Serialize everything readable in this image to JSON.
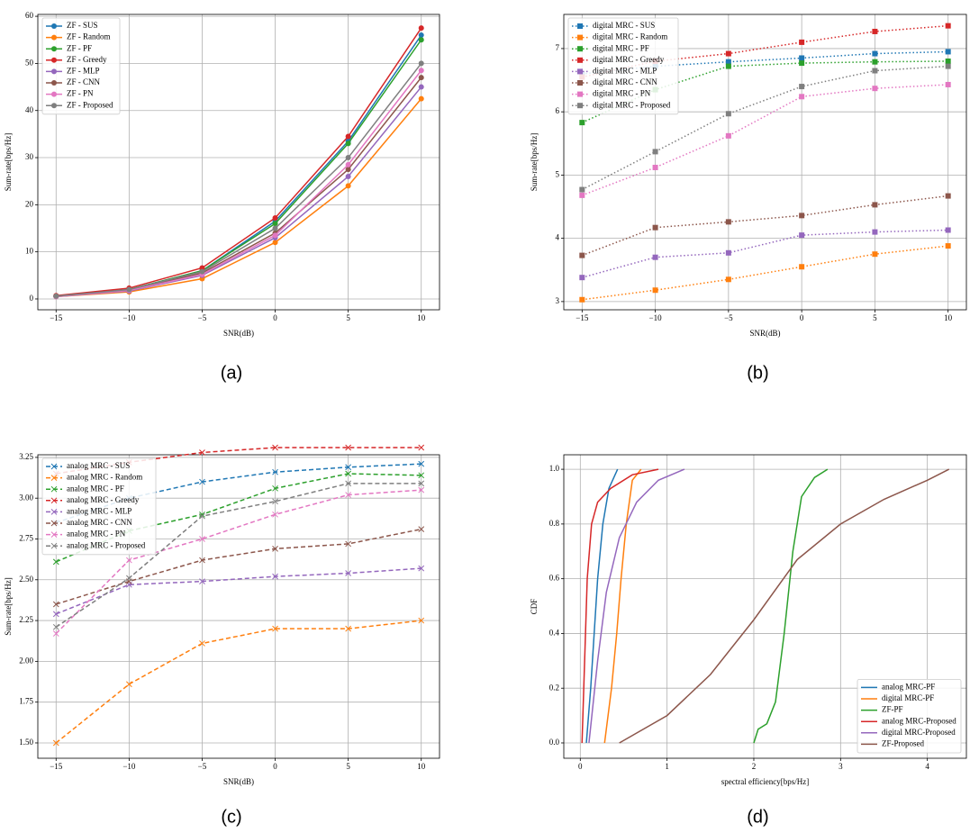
{
  "chart_data": [
    {
      "type": "line",
      "caption": "(a)",
      "xlabel": "SNR(dB)",
      "ylabel": "Sum-rate[bps/Hz]",
      "line_style": "solid",
      "marker": "circle",
      "legend": "upper left",
      "grid": true,
      "x": [
        -15,
        -10,
        -5,
        0,
        5,
        10
      ],
      "xlim": [
        -16.25,
        11.25
      ],
      "xticks": [
        {
          "value": -15,
          "label": "−15"
        },
        {
          "value": -10,
          "label": "−10"
        },
        {
          "value": -5,
          "label": "−5"
        },
        0,
        5,
        10
      ],
      "ylim": [
        -2.3,
        60.4
      ],
      "yticks": [
        0,
        10,
        20,
        30,
        40,
        50,
        60
      ],
      "series": [
        {
          "name": "ZF - SUS",
          "color": "#1f77b4",
          "values": [
            0.6,
            2.0,
            6.0,
            16.5,
            33.5,
            56
          ]
        },
        {
          "name": "ZF - Random",
          "color": "#ff7f0e",
          "values": [
            0.5,
            1.5,
            4.3,
            12,
            24,
            42.5
          ]
        },
        {
          "name": "ZF - PF",
          "color": "#2ca02c",
          "values": [
            0.6,
            2.0,
            6.0,
            16,
            33,
            55
          ]
        },
        {
          "name": "ZF - Greedy",
          "color": "#d62728",
          "values": [
            0.7,
            2.3,
            6.6,
            17.2,
            34.5,
            57.5
          ]
        },
        {
          "name": "ZF - MLP",
          "color": "#9467bd",
          "values": [
            0.5,
            1.7,
            5.0,
            13,
            26,
            45
          ]
        },
        {
          "name": "ZF - CNN",
          "color": "#8c564b",
          "values": [
            0.6,
            1.9,
            5.5,
            14,
            27.5,
            47
          ]
        },
        {
          "name": "ZF - PN",
          "color": "#e377c2",
          "values": [
            0.5,
            1.8,
            5.2,
            13.5,
            28.5,
            48.5
          ]
        },
        {
          "name": "ZF - Proposed",
          "color": "#7f7f7f",
          "values": [
            0.6,
            2.0,
            5.8,
            15,
            30,
            50
          ]
        }
      ]
    },
    {
      "type": "line",
      "caption": "(b)",
      "xlabel": "SNR(dB)",
      "ylabel": "Sum-rate[bps/Hz]",
      "line_style": "dotted",
      "marker": "square",
      "legend": "upper left",
      "grid": true,
      "x": [
        -15,
        -10,
        -5,
        0,
        5,
        10
      ],
      "xlim": [
        -16.25,
        11.25
      ],
      "xticks": [
        {
          "value": -15,
          "label": "−15"
        },
        {
          "value": -10,
          "label": "−10"
        },
        {
          "value": -5,
          "label": "−5"
        },
        0,
        5,
        10
      ],
      "ylim": [
        2.87,
        7.54
      ],
      "yticks": [
        3,
        4,
        5,
        6,
        7
      ],
      "series": [
        {
          "name": "digital MRC - SUS",
          "color": "#1f77b4",
          "values": [
            6.6,
            6.72,
            6.79,
            6.85,
            6.92,
            6.95
          ]
        },
        {
          "name": "digital MRC - Random",
          "color": "#ff7f0e",
          "values": [
            3.03,
            3.18,
            3.35,
            3.55,
            3.75,
            3.88
          ]
        },
        {
          "name": "digital MRC - PF",
          "color": "#2ca02c",
          "values": [
            5.83,
            6.35,
            6.72,
            6.77,
            6.79,
            6.8
          ]
        },
        {
          "name": "digital MRC - Greedy",
          "color": "#d62728",
          "values": [
            6.55,
            6.8,
            6.92,
            7.1,
            7.27,
            7.36
          ]
        },
        {
          "name": "digital MRC - MLP",
          "color": "#9467bd",
          "values": [
            3.38,
            3.7,
            3.77,
            4.05,
            4.1,
            4.13
          ]
        },
        {
          "name": "digital MRC - CNN",
          "color": "#8c564b",
          "values": [
            3.73,
            4.17,
            4.26,
            4.36,
            4.53,
            4.67
          ]
        },
        {
          "name": "digital MRC - PN",
          "color": "#e377c2",
          "values": [
            4.68,
            5.12,
            5.62,
            6.24,
            6.37,
            6.43
          ]
        },
        {
          "name": "digital MRC - Proposed",
          "color": "#7f7f7f",
          "values": [
            4.77,
            5.37,
            5.97,
            6.4,
            6.65,
            6.72
          ]
        }
      ]
    },
    {
      "type": "line",
      "caption": "(c)",
      "xlabel": "SNR(dB)",
      "ylabel": "Sum-rate[bps/Hz]",
      "line_style": "dashed",
      "marker": "cross",
      "legend": "upper left",
      "grid": true,
      "x": [
        -15,
        -10,
        -5,
        0,
        5,
        10
      ],
      "xlim": [
        -16.25,
        11.25
      ],
      "xticks": [
        {
          "value": -15,
          "label": "−15"
        },
        {
          "value": -10,
          "label": "−10"
        },
        {
          "value": -5,
          "label": "−5"
        },
        0,
        5,
        10
      ],
      "ylim": [
        1.406,
        3.266
      ],
      "yticks": [
        {
          "value": 1.5,
          "label": "1.50"
        },
        {
          "value": 1.75,
          "label": "1.75"
        },
        {
          "value": 2,
          "label": "2.00"
        },
        {
          "value": 2.25,
          "label": "2.25"
        },
        {
          "value": 2.5,
          "label": "2.50"
        },
        {
          "value": 2.75,
          "label": "2.75"
        },
        {
          "value": 3,
          "label": "3.00"
        },
        {
          "value": 3.25,
          "label": "3.25"
        }
      ],
      "series": [
        {
          "name": "analog MRC - SUS",
          "color": "#1f77b4",
          "values": [
            2.85,
            3.0,
            3.1,
            3.16,
            3.19,
            3.21
          ]
        },
        {
          "name": "analog MRC - Random",
          "color": "#ff7f0e",
          "values": [
            1.5,
            1.86,
            2.11,
            2.2,
            2.2,
            2.25
          ]
        },
        {
          "name": "analog MRC - PF",
          "color": "#2ca02c",
          "values": [
            2.61,
            2.8,
            2.9,
            3.06,
            3.15,
            3.14
          ]
        },
        {
          "name": "analog MRC - Greedy",
          "color": "#d62728",
          "values": [
            3.15,
            3.22,
            3.28,
            3.31,
            3.31,
            3.31
          ]
        },
        {
          "name": "analog MRC - MLP",
          "color": "#9467bd",
          "values": [
            2.29,
            2.47,
            2.49,
            2.52,
            2.54,
            2.57
          ]
        },
        {
          "name": "analog MRC - CNN",
          "color": "#8c564b",
          "values": [
            2.35,
            2.49,
            2.62,
            2.69,
            2.72,
            2.81
          ]
        },
        {
          "name": "analog MRC - PN",
          "color": "#e377c2",
          "values": [
            2.17,
            2.62,
            2.75,
            2.9,
            3.02,
            3.05
          ]
        },
        {
          "name": "analog MRC - Proposed",
          "color": "#7f7f7f",
          "values": [
            2.21,
            2.51,
            2.89,
            2.98,
            3.09,
            3.09
          ]
        }
      ]
    },
    {
      "type": "line",
      "caption": "(d)",
      "xlabel": "spectral efficiency[bps/Hz]",
      "ylabel": "CDF",
      "line_style": "solid",
      "marker": "none",
      "legend": "lower right",
      "grid": true,
      "xlim": [
        -0.19,
        4.45
      ],
      "xticks": [
        0,
        1,
        2,
        3,
        4
      ],
      "ylim": [
        -0.056,
        1.053
      ],
      "yticks": [
        {
          "value": 0,
          "label": "0.0"
        },
        {
          "value": 0.2,
          "label": "0.2"
        },
        {
          "value": 0.4,
          "label": "0.4"
        },
        {
          "value": 0.6,
          "label": "0.6"
        },
        {
          "value": 0.8,
          "label": "0.8"
        },
        {
          "value": 1,
          "label": "1.0"
        }
      ],
      "series": [
        {
          "name": "analog MRC-PF",
          "color": "#1f77b4",
          "x": [
            0.07,
            0.12,
            0.16,
            0.2,
            0.26,
            0.33,
            0.43
          ],
          "values": [
            0,
            0.2,
            0.4,
            0.6,
            0.8,
            0.93,
            1
          ]
        },
        {
          "name": "digital MRC-PF",
          "color": "#ff7f0e",
          "x": [
            0.28,
            0.36,
            0.42,
            0.47,
            0.53,
            0.6,
            0.7
          ],
          "values": [
            0,
            0.2,
            0.4,
            0.6,
            0.8,
            0.96,
            1
          ]
        },
        {
          "name": "ZF-PF",
          "color": "#2ca02c",
          "x": [
            2.0,
            2.05,
            2.15,
            2.25,
            2.35,
            2.45,
            2.55,
            2.7,
            2.85
          ],
          "values": [
            0,
            0.05,
            0.07,
            0.15,
            0.4,
            0.7,
            0.9,
            0.97,
            1
          ]
        },
        {
          "name": "analog MRC-Proposed",
          "color": "#d62728",
          "x": [
            0.02,
            0.05,
            0.08,
            0.13,
            0.2,
            0.35,
            0.6,
            0.9
          ],
          "values": [
            0,
            0.3,
            0.6,
            0.8,
            0.88,
            0.93,
            0.98,
            1
          ]
        },
        {
          "name": "digital MRC-Proposed",
          "color": "#9467bd",
          "x": [
            0.1,
            0.2,
            0.3,
            0.45,
            0.65,
            0.9,
            1.2
          ],
          "values": [
            0,
            0.3,
            0.55,
            0.75,
            0.88,
            0.96,
            1
          ]
        },
        {
          "name": "ZF-Proposed",
          "color": "#8c564b",
          "x": [
            0.45,
            1.0,
            1.5,
            2.0,
            2.5,
            3.0,
            3.5,
            4.0,
            4.25
          ],
          "values": [
            0,
            0.1,
            0.25,
            0.45,
            0.67,
            0.8,
            0.89,
            0.96,
            1
          ]
        }
      ]
    }
  ]
}
